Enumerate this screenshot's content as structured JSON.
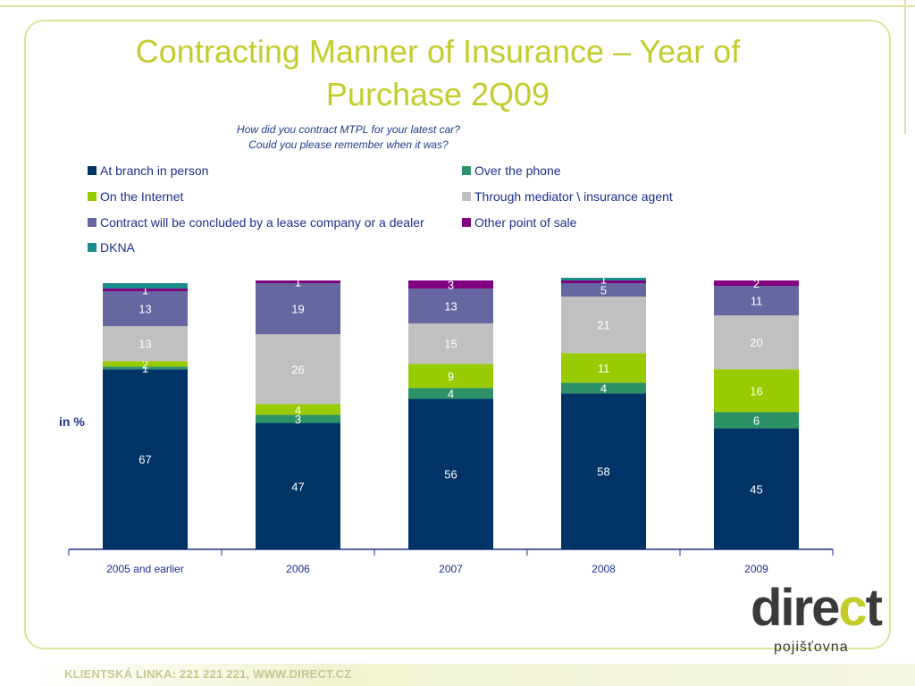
{
  "title": "Contracting Manner of Insurance – Year of Purchase 2Q09",
  "subtitle_lines": [
    "How did you contract MTPL for your latest car?",
    "Could you please remember when it was?"
  ],
  "y_axis_label": "in %",
  "footer": "KLIENTSKÁ LINKA: 221 221 221, WWW.DIRECT.CZ",
  "logo": {
    "word_pre": "dire",
    "word_mark": "c",
    "word_post": "t",
    "sub": "pojišťovna"
  },
  "chart_data": {
    "type": "bar",
    "stacked": true,
    "categories": [
      "2005 and earlier",
      "2006",
      "2007",
      "2008",
      "2009"
    ],
    "ylim": [
      0,
      100
    ],
    "grid": false,
    "legend_position": "top",
    "series": [
      {
        "name": "At branch in person",
        "color": "#003466",
        "values": [
          67,
          47,
          56,
          58,
          45
        ],
        "labels": [
          "67",
          "47",
          "56",
          "58",
          "45"
        ]
      },
      {
        "name": "Over the phone",
        "color": "#2e9268",
        "values": [
          1,
          3,
          4,
          4,
          6
        ],
        "labels": [
          "1",
          "3",
          "4",
          "4",
          "6"
        ]
      },
      {
        "name": "On the Internet",
        "color": "#99cc00",
        "values": [
          2,
          4,
          9,
          11,
          16
        ],
        "labels": [
          "2",
          "4",
          "9",
          "11",
          "16"
        ]
      },
      {
        "name": "Through mediator \\ insurance agent",
        "color": "#c0c0c0",
        "values": [
          13,
          26,
          15,
          21,
          20
        ],
        "labels": [
          "13",
          "26",
          "15",
          "21",
          "20"
        ]
      },
      {
        "name": "Contract will be concluded by a lease company or a dealer",
        "color": "#6666a0",
        "values": [
          13,
          19,
          13,
          5,
          11
        ],
        "labels": [
          "13",
          "19",
          "13",
          "5",
          "11"
        ]
      },
      {
        "name": "Other point of sale",
        "color": "#800080",
        "values": [
          1,
          1,
          3,
          1,
          2
        ],
        "labels": [
          "1",
          "1",
          "3",
          "",
          "2"
        ]
      },
      {
        "name": "DKNA",
        "color": "#1a8c8c",
        "values": [
          2,
          0,
          0,
          1,
          0
        ],
        "labels": [
          "",
          "",
          "",
          "1",
          ""
        ]
      }
    ]
  }
}
